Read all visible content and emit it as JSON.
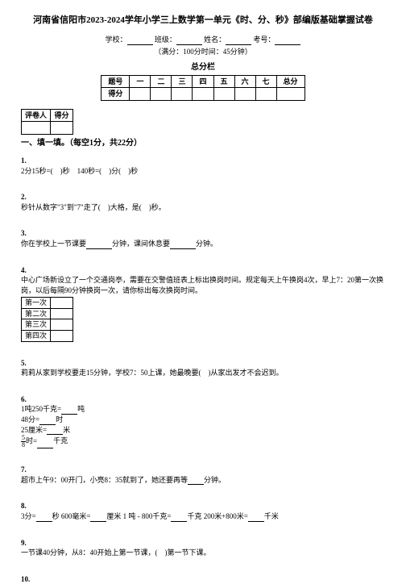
{
  "title": "河南省信阳市2023-2024学年小学三上数学第一单元《时、分、秒》部编版基础掌握试卷",
  "info": {
    "school_label": "学校：",
    "class_label": "班级：",
    "name_label": "姓名：",
    "id_label": "考号："
  },
  "exam_info": "（满分：100分时间：45分钟）",
  "score_bar_title": "总分栏",
  "score_table": {
    "row1": [
      "题号",
      "一",
      "二",
      "三",
      "四",
      "五",
      "六",
      "七",
      "总分"
    ],
    "row2_label": "得分"
  },
  "grader_table": {
    "c1": "评卷人",
    "c2": "得分"
  },
  "section1": "一、填一填。（每空1分，共22分）",
  "q1": {
    "num": "1.",
    "text_a": "2分15秒=(",
    "text_b": ")秒",
    "text_c": "140秒=(",
    "text_d": ")分(",
    "text_e": ")秒"
  },
  "q2": {
    "num": "2.",
    "text_a": "秒针从数字\"3\"到\"7\"走了(",
    "text_b": ")大格，是(",
    "text_c": ")秒。"
  },
  "q3": {
    "num": "3.",
    "text_a": "你在学校上一节课要",
    "text_b": "分钟，课间休息要",
    "text_c": "分钟。"
  },
  "q4": {
    "num": "4.",
    "text": "中心广场新设立了一个交通岗亭，需要在交警值班表上标出换岗时间。规定每天上午换岗4次，早上7：20第一次换岗，以后每隔90分钟换岗一次，请你标出每次换岗时间。",
    "rows": [
      "第一次",
      "第二次",
      "第三次",
      "第四次"
    ]
  },
  "q5": {
    "num": "5.",
    "text_a": "莉莉从家到学校要走15分钟，学校7：50上课，她最晚要(",
    "text_b": ")从家出发才不会迟到。"
  },
  "q6": {
    "num": "6.",
    "line1_a": "1吨250千克=",
    "line1_b": "吨",
    "line2_a": "48分=",
    "line2_b": "时",
    "line3_a": "25厘米=",
    "line3_b": "米",
    "line4_a": "时=",
    "line4_b": "千克",
    "frac_top": "5",
    "frac_bot": "8"
  },
  "q7": {
    "num": "7.",
    "text_a": "超市上午9：00开门，小亮8：35就到了，她还要再等",
    "text_b": "分钟。"
  },
  "q8": {
    "num": "8.",
    "text_a": "3分=",
    "text_b": "秒 600毫米=",
    "text_c": "厘米 1 吨 - 800千克=",
    "text_d": "千克 200米+800米=",
    "text_e": "千米"
  },
  "q9": {
    "num": "9.",
    "text_a": "一节课40分钟，从8：40开始上第一节课，(",
    "text_b": ")第一节下课。"
  },
  "q10": {
    "num": "10."
  }
}
